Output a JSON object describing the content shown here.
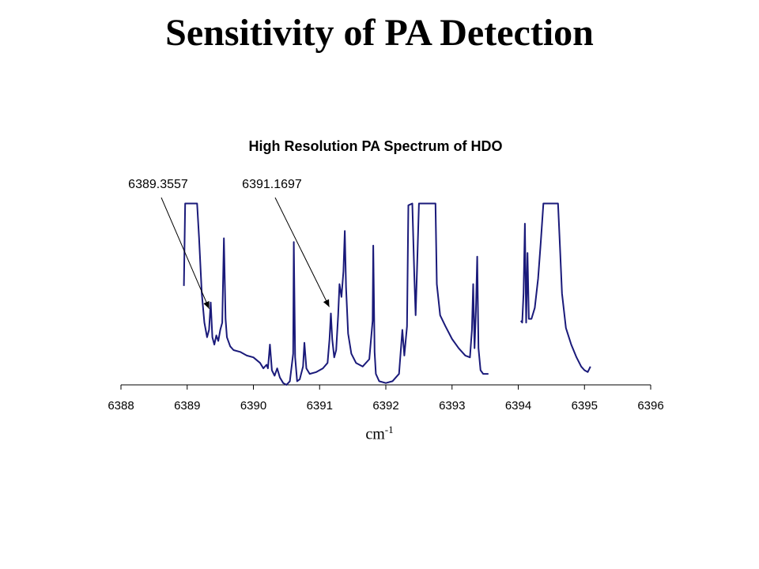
{
  "slide": {
    "title": "Sensitivity of PA Detection"
  },
  "chart_data": {
    "type": "line",
    "title": "High Resolution PA Spectrum of HDO",
    "xlabel": "",
    "xlabel_unit_base": "cm",
    "xlabel_unit_exp": "-1",
    "ylabel": "",
    "xlim": [
      6388,
      6396
    ],
    "ylim": [
      0,
      1
    ],
    "x_ticks": [
      6388,
      6389,
      6390,
      6391,
      6392,
      6393,
      6394,
      6395,
      6396
    ],
    "grid": false,
    "legend": "none",
    "colors": {
      "series": "#1a1a7a",
      "arrow": "#000000"
    },
    "annotations": [
      {
        "label": "6389.3557",
        "x": 6389.3557,
        "y": 0.45
      },
      {
        "label": "6391.1697",
        "x": 6391.1697,
        "y": 0.46
      }
    ],
    "series": [
      {
        "segments": [
          [
            [
              6388.95,
              0.54
            ],
            [
              6388.97,
              0.99
            ],
            [
              6389.15,
              0.99
            ],
            [
              6389.18,
              0.8
            ],
            [
              6389.22,
              0.5
            ],
            [
              6389.26,
              0.34
            ],
            [
              6389.3,
              0.26
            ],
            [
              6389.33,
              0.3
            ],
            [
              6389.3557,
              0.45
            ],
            [
              6389.38,
              0.26
            ],
            [
              6389.41,
              0.22
            ],
            [
              6389.44,
              0.27
            ],
            [
              6389.47,
              0.24
            ],
            [
              6389.5,
              0.3
            ],
            [
              6389.53,
              0.34
            ],
            [
              6389.555,
              0.8
            ],
            [
              6389.58,
              0.36
            ],
            [
              6389.6,
              0.26
            ],
            [
              6389.65,
              0.21
            ],
            [
              6389.7,
              0.19
            ],
            [
              6389.8,
              0.18
            ],
            [
              6389.9,
              0.16
            ],
            [
              6390.0,
              0.15
            ],
            [
              6390.1,
              0.12
            ],
            [
              6390.15,
              0.09
            ],
            [
              6390.2,
              0.11
            ],
            [
              6390.22,
              0.09
            ],
            [
              6390.25,
              0.22
            ],
            [
              6390.28,
              0.08
            ],
            [
              6390.32,
              0.05
            ],
            [
              6390.36,
              0.09
            ],
            [
              6390.4,
              0.04
            ],
            [
              6390.45,
              0.01
            ],
            [
              6390.5,
              0.0
            ],
            [
              6390.55,
              0.02
            ],
            [
              6390.6,
              0.17
            ],
            [
              6390.61,
              0.78
            ],
            [
              6390.63,
              0.15
            ],
            [
              6390.66,
              0.02
            ],
            [
              6390.7,
              0.03
            ],
            [
              6390.75,
              0.1
            ],
            [
              6390.77,
              0.23
            ],
            [
              6390.8,
              0.09
            ],
            [
              6390.85,
              0.06
            ],
            [
              6390.95,
              0.07
            ],
            [
              6391.05,
              0.09
            ],
            [
              6391.12,
              0.12
            ],
            [
              6391.15,
              0.25
            ],
            [
              6391.1697,
              0.39
            ],
            [
              6391.19,
              0.25
            ],
            [
              6391.22,
              0.15
            ],
            [
              6391.25,
              0.19
            ],
            [
              6391.28,
              0.38
            ],
            [
              6391.3,
              0.55
            ],
            [
              6391.33,
              0.48
            ],
            [
              6391.36,
              0.62
            ],
            [
              6391.38,
              0.84
            ],
            [
              6391.4,
              0.53
            ],
            [
              6391.43,
              0.28
            ],
            [
              6391.48,
              0.17
            ],
            [
              6391.55,
              0.12
            ],
            [
              6391.65,
              0.1
            ],
            [
              6391.75,
              0.14
            ],
            [
              6391.8,
              0.35
            ],
            [
              6391.81,
              0.76
            ],
            [
              6391.83,
              0.18
            ],
            [
              6391.85,
              0.06
            ],
            [
              6391.9,
              0.02
            ],
            [
              6392.0,
              0.01
            ],
            [
              6392.1,
              0.02
            ],
            [
              6392.2,
              0.06
            ],
            [
              6392.25,
              0.3
            ],
            [
              6392.28,
              0.16
            ],
            [
              6392.32,
              0.32
            ],
            [
              6392.34,
              0.98
            ],
            [
              6392.4,
              0.99
            ],
            [
              6392.43,
              0.6
            ],
            [
              6392.45,
              0.38
            ],
            [
              6392.47,
              0.62
            ],
            [
              6392.5,
              0.99
            ],
            [
              6392.75,
              0.99
            ],
            [
              6392.77,
              0.55
            ],
            [
              6392.82,
              0.38
            ],
            [
              6392.9,
              0.32
            ],
            [
              6393.0,
              0.25
            ],
            [
              6393.1,
              0.2
            ],
            [
              6393.2,
              0.16
            ],
            [
              6393.27,
              0.15
            ],
            [
              6393.3,
              0.3
            ],
            [
              6393.32,
              0.55
            ],
            [
              6393.34,
              0.2
            ],
            [
              6393.36,
              0.4
            ],
            [
              6393.38,
              0.7
            ],
            [
              6393.4,
              0.2
            ],
            [
              6393.43,
              0.08
            ],
            [
              6393.47,
              0.06
            ],
            [
              6393.5,
              0.06
            ],
            [
              6393.55,
              0.06
            ]
          ],
          [
            [
              6394.04,
              0.35
            ],
            [
              6394.06,
              0.34
            ],
            [
              6394.08,
              0.5
            ],
            [
              6394.1,
              0.88
            ],
            [
              6394.12,
              0.34
            ],
            [
              6394.14,
              0.72
            ],
            [
              6394.16,
              0.36
            ],
            [
              6394.2,
              0.36
            ],
            [
              6394.25,
              0.42
            ],
            [
              6394.3,
              0.58
            ],
            [
              6394.34,
              0.78
            ],
            [
              6394.38,
              0.99
            ],
            [
              6394.6,
              0.99
            ],
            [
              6394.63,
              0.75
            ],
            [
              6394.66,
              0.5
            ],
            [
              6394.72,
              0.31
            ],
            [
              6394.8,
              0.22
            ],
            [
              6394.88,
              0.15
            ],
            [
              6394.95,
              0.1
            ],
            [
              6395.0,
              0.08
            ],
            [
              6395.05,
              0.07
            ],
            [
              6395.09,
              0.1
            ]
          ]
        ]
      }
    ]
  }
}
